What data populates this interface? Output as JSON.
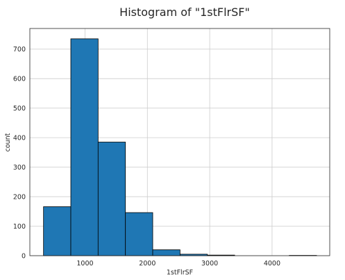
{
  "chart_data": {
    "type": "bar",
    "subtype": "histogram",
    "title": "Histogram of \"1stFlrSF\"",
    "xlabel": "1stFlrSF",
    "ylabel": "count",
    "xlim": [
      115,
      4925
    ],
    "ylim": [
      0,
      770
    ],
    "xticks": [
      1000,
      2000,
      3000,
      4000
    ],
    "yticks": [
      0,
      100,
      200,
      300,
      400,
      500,
      600,
      700
    ],
    "grid": true,
    "bar_color": "#1f77b4",
    "bins": [
      {
        "x0": 334,
        "x1": 772,
        "count": 166
      },
      {
        "x0": 772,
        "x1": 1210,
        "count": 735
      },
      {
        "x0": 1210,
        "x1": 1648,
        "count": 385
      },
      {
        "x0": 1648,
        "x1": 2086,
        "count": 146
      },
      {
        "x0": 2086,
        "x1": 2524,
        "count": 20
      },
      {
        "x0": 2524,
        "x1": 2962,
        "count": 5
      },
      {
        "x0": 2962,
        "x1": 3400,
        "count": 2
      },
      {
        "x0": 3400,
        "x1": 3838,
        "count": 0
      },
      {
        "x0": 3838,
        "x1": 4276,
        "count": 0
      },
      {
        "x0": 4276,
        "x1": 4714,
        "count": 1
      }
    ]
  }
}
